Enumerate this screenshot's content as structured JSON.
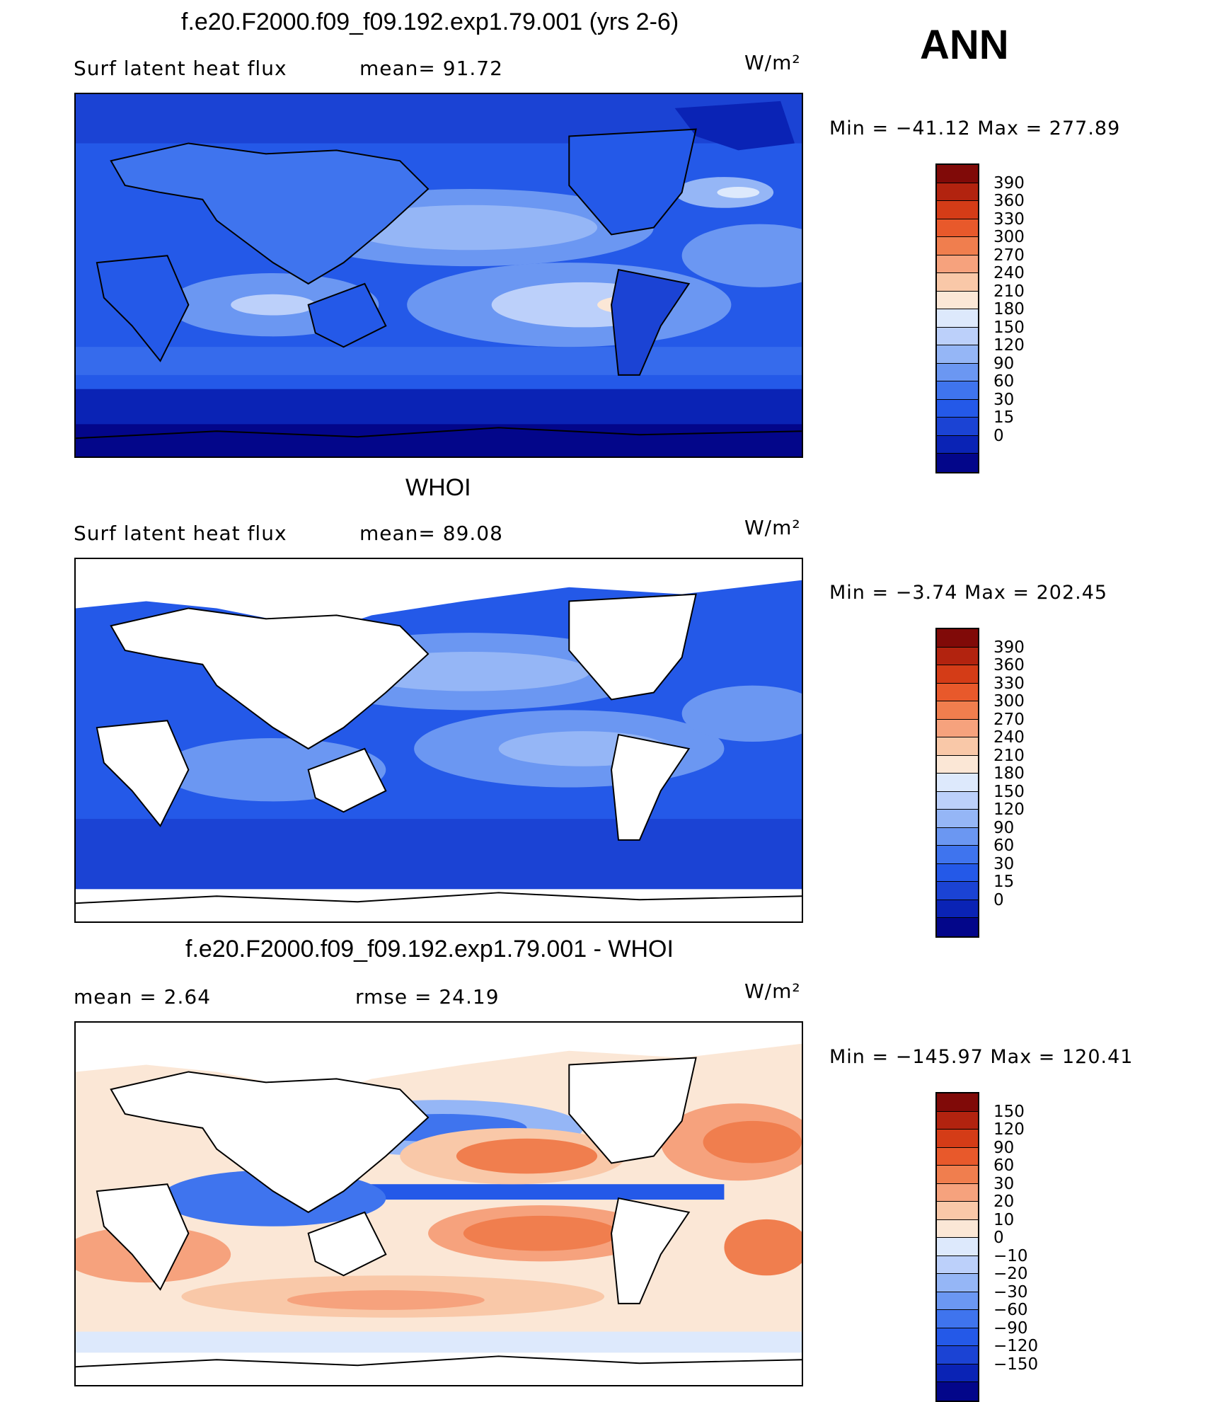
{
  "header": {
    "season": "ANN"
  },
  "colors": {
    "abs_scale": [
      "#03068a",
      "#0a23b5",
      "#1b43d4",
      "#2459e8",
      "#3f74ee",
      "#6b97f2",
      "#95b6f6",
      "#bcd0fa",
      "#dde9fc",
      "#fbe7d6",
      "#f9c8a8",
      "#f6a27d",
      "#f07e4e",
      "#e8592b",
      "#d43c17",
      "#b2230f",
      "#800a08"
    ],
    "diff_scale": [
      "#03068a",
      "#0a23b5",
      "#1b43d4",
      "#2459e8",
      "#3f74ee",
      "#6b97f2",
      "#95b6f6",
      "#bcd0fa",
      "#dde9fc",
      "#fbe7d6",
      "#f9c8a8",
      "#f6a27d",
      "#f07e4e",
      "#e8592b",
      "#d43c17",
      "#b2230f",
      "#800a08"
    ]
  },
  "panels": [
    {
      "title": "f.e20.F2000.f09_f09.192.exp1.79.001 (yrs 2-6)",
      "left_label": "Surf  latent  heat  flux",
      "mid_label": "mean=   91.72",
      "units": "W/m²",
      "minmax": "Min  =  −41.12  Max  =  277.89",
      "colorbar_labels": [
        "390",
        "360",
        "330",
        "300",
        "270",
        "240",
        "210",
        "180",
        "150",
        "120",
        "90",
        "60",
        "30",
        "15",
        "0"
      ]
    },
    {
      "title": "WHOI",
      "left_label": "Surf  latent  heat  flux",
      "mid_label": "mean=   89.08",
      "units": "W/m²",
      "minmax": "Min  =    −3.74  Max  =  202.45",
      "colorbar_labels": [
        "390",
        "360",
        "330",
        "300",
        "270",
        "240",
        "210",
        "180",
        "150",
        "120",
        "90",
        "60",
        "30",
        "15",
        "0"
      ]
    },
    {
      "title": "f.e20.F2000.f09_f09.192.exp1.79.001 - WHOI",
      "left_label": "mean  =      2.64",
      "mid_label": "rmse  =    24.19",
      "units": "W/m²",
      "minmax": "Min  =  −145.97  Max  =  120.41",
      "colorbar_labels": [
        "150",
        "120",
        "90",
        "60",
        "30",
        "20",
        "10",
        "0",
        "−10",
        "−20",
        "−30",
        "−60",
        "−90",
        "−120",
        "−150"
      ]
    }
  ],
  "chart_data": [
    {
      "type": "heatmap",
      "title": "f.e20.F2000.f09_f09.192.exp1.79.001 (yrs 2-6)",
      "variable": "Surf latent heat flux",
      "units": "W/m²",
      "mean": 91.72,
      "min": -41.12,
      "max": 277.89,
      "levels": [
        0,
        15,
        30,
        60,
        90,
        120,
        150,
        180,
        210,
        240,
        270,
        300,
        330,
        360,
        390
      ]
    },
    {
      "type": "heatmap",
      "title": "WHOI",
      "variable": "Surf latent heat flux",
      "units": "W/m²",
      "mean": 89.08,
      "min": -3.74,
      "max": 202.45,
      "levels": [
        0,
        15,
        30,
        60,
        90,
        120,
        150,
        180,
        210,
        240,
        270,
        300,
        330,
        360,
        390
      ]
    },
    {
      "type": "heatmap",
      "title": "f.e20.F2000.f09_f09.192.exp1.79.001 - WHOI",
      "units": "W/m²",
      "mean": 2.64,
      "rmse": 24.19,
      "min": -145.97,
      "max": 120.41,
      "levels": [
        -150,
        -120,
        -90,
        -60,
        -30,
        -20,
        -10,
        0,
        10,
        20,
        30,
        60,
        90,
        120,
        150
      ]
    }
  ]
}
